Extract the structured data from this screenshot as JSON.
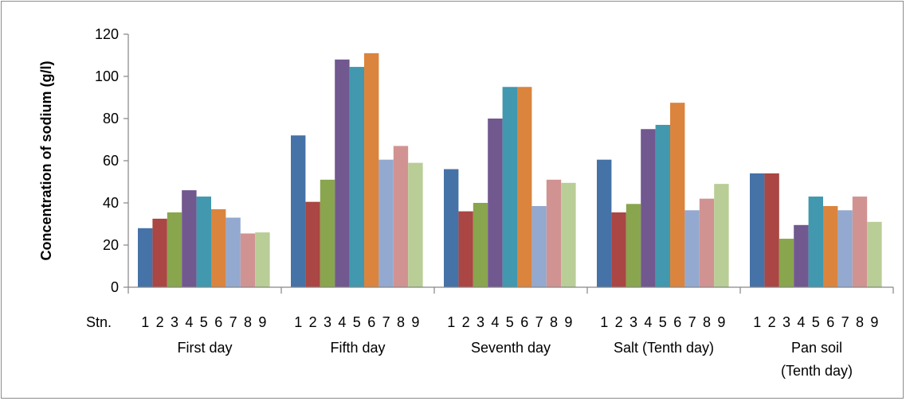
{
  "chart_data": {
    "type": "bar",
    "title": "",
    "xlabel": "",
    "ylabel": "Concentration of sodium (g/l)",
    "x_prefix": "Stn.",
    "ylim": [
      0,
      120
    ],
    "ytick_step": 20,
    "ytick_labels": [
      "0",
      "20",
      "40",
      "60",
      "80",
      "100",
      "120"
    ],
    "grid": false,
    "legend": "none",
    "stations": [
      "1",
      "2",
      "3",
      "4",
      "5",
      "6",
      "7",
      "8",
      "9"
    ],
    "station_colors": [
      "#4572a7",
      "#aa4643",
      "#89a54e",
      "#71588f",
      "#4198af",
      "#db843d",
      "#93a9cf",
      "#d19392",
      "#b9cd96"
    ],
    "groups": [
      {
        "label": [
          "First day"
        ],
        "values": [
          28,
          32.5,
          35.5,
          46,
          43,
          37,
          33,
          25.5,
          26
        ]
      },
      {
        "label": [
          "Fifth day"
        ],
        "values": [
          72,
          40.5,
          51,
          108,
          104.5,
          111,
          60.5,
          67,
          59
        ]
      },
      {
        "label": [
          "Seventh day"
        ],
        "values": [
          56,
          36,
          40,
          80,
          95,
          95,
          38.5,
          51,
          49.5
        ]
      },
      {
        "label": [
          "Salt (Tenth day)"
        ],
        "values": [
          60.5,
          35.5,
          39.5,
          75,
          77,
          87.5,
          36.5,
          42,
          49
        ]
      },
      {
        "label": [
          "Pan soil",
          "(Tenth day)"
        ],
        "values": [
          54,
          54,
          23,
          29.5,
          43,
          38.5,
          36.5,
          43,
          31
        ]
      }
    ]
  }
}
